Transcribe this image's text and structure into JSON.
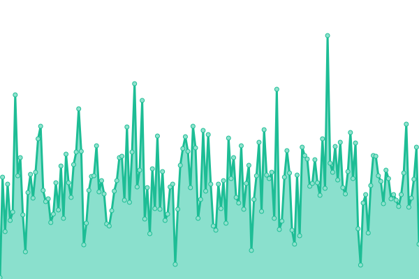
{
  "chart_data": {
    "type": "area",
    "title": "",
    "xlabel": "",
    "ylabel": "",
    "ylim": [
      0,
      400
    ],
    "grid": false,
    "axes_visible": false,
    "legend": "none",
    "colors": {
      "line": "#1dbd95",
      "fill": "#8ae0cd",
      "marker_fill": "#8fe2cd",
      "marker_stroke": "#1dbd95"
    },
    "values": [
      2,
      146,
      68,
      136,
      84,
      96,
      264,
      148,
      174,
      92,
      39,
      124,
      150,
      116,
      153,
      201,
      219,
      127,
      111,
      115,
      81,
      93,
      138,
      99,
      162,
      87,
      179,
      138,
      117,
      164,
      182,
      244,
      183,
      49,
      80,
      127,
      147,
      148,
      191,
      125,
      141,
      122,
      79,
      76,
      98,
      126,
      141,
      174,
      176,
      113,
      218,
      110,
      182,
      280,
      132,
      156,
      256,
      86,
      131,
      65,
      158,
      101,
      205,
      100,
      154,
      84,
      93,
      132,
      136,
      21,
      100,
      163,
      187,
      204,
      183,
      131,
      219,
      188,
      87,
      114,
      213,
      126,
      207,
      136,
      76,
      70,
      136,
      101,
      141,
      80,
      202,
      144,
      174,
      117,
      109,
      191,
      100,
      137,
      163,
      41,
      114,
      148,
      196,
      97,
      214,
      149,
      144,
      153,
      87,
      272,
      71,
      83,
      146,
      184,
      152,
      70,
      50,
      149,
      62,
      189,
      177,
      172,
      133,
      137,
      171,
      138,
      120,
      201,
      130,
      349,
      166,
      153,
      190,
      142,
      196,
      131,
      122,
      154,
      210,
      144,
      195,
      72,
      20,
      109,
      121,
      66,
      134,
      177,
      176,
      148,
      140,
      108,
      156,
      144,
      115,
      121,
      113,
      104,
      121,
      152,
      222,
      103,
      116,
      143,
      189,
      50
    ]
  }
}
